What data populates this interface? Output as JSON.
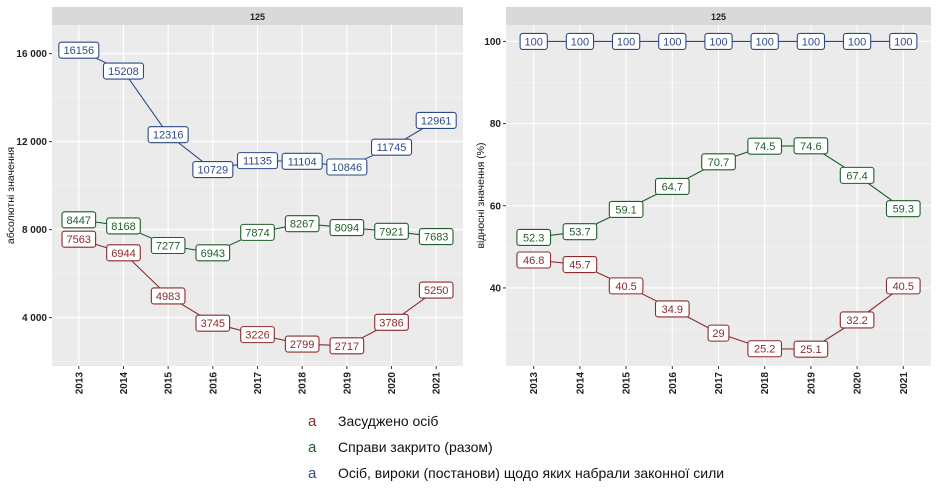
{
  "colors": {
    "convicted": "#8b2a2a",
    "closed": "#1e5e28",
    "total": "#2c4a8a"
  },
  "legend": {
    "key_glyph": "a",
    "items": [
      {
        "series": "convicted",
        "label": "Засуджено осіб"
      },
      {
        "series": "closed",
        "label": "Справи закрито (разом)"
      },
      {
        "series": "total",
        "label": "Осіб, вироки (постанови) щодо яких набрали законної сили"
      }
    ]
  },
  "chart_data": [
    {
      "type": "line",
      "facet_label": "125",
      "xlabel": "",
      "ylabel": "абсолютні значення",
      "categories": [
        "2013",
        "2014",
        "2015",
        "2016",
        "2017",
        "2018",
        "2019",
        "2020",
        "2021"
      ],
      "ylim": [
        1800,
        17300
      ],
      "yticks": [
        4000,
        8000,
        12000,
        16000
      ],
      "ytick_labels": [
        "4 000",
        "8 000",
        "12 000",
        "16 000"
      ],
      "grid": true,
      "legend_position": "bottom",
      "series": [
        {
          "key": "total",
          "name": "Осіб, вироки (постанови) щодо яких набрали законної сили",
          "values": [
            16156,
            15208,
            12316,
            10729,
            11135,
            11104,
            10846,
            11745,
            12961
          ],
          "labels": [
            "16156",
            "15208",
            "12316",
            "10729",
            "11135",
            "11104",
            "10846",
            "11745",
            "12961"
          ]
        },
        {
          "key": "closed",
          "name": "Справи закрито (разом)",
          "values": [
            8447,
            8168,
            7277,
            6943,
            7874,
            8267,
            8094,
            7921,
            7683
          ],
          "labels": [
            "8447",
            "8168",
            "7277",
            "6943",
            "7874",
            "8267",
            "8094",
            "7921",
            "7683"
          ]
        },
        {
          "key": "convicted",
          "name": "Засуджено осіб",
          "values": [
            7563,
            6944,
            4983,
            3745,
            3226,
            2799,
            2717,
            3786,
            5250
          ],
          "labels": [
            "7563",
            "6944",
            "4983",
            "3745",
            "3226",
            "2799",
            "2717",
            "3786",
            "5250"
          ]
        }
      ]
    },
    {
      "type": "line",
      "facet_label": "125",
      "xlabel": "",
      "ylabel": "відносні значення (%)",
      "categories": [
        "2013",
        "2014",
        "2015",
        "2016",
        "2017",
        "2018",
        "2019",
        "2020",
        "2021"
      ],
      "ylim": [
        21,
        104
      ],
      "yticks": [
        40,
        60,
        80,
        100
      ],
      "ytick_labels": [
        "40",
        "60",
        "80",
        "100"
      ],
      "grid": true,
      "legend_position": "bottom",
      "series": [
        {
          "key": "total",
          "name": "Осіб, вироки (постанови) щодо яких набрали законної сили",
          "values": [
            100,
            100,
            100,
            100,
            100,
            100,
            100,
            100,
            100
          ],
          "labels": [
            "100",
            "100",
            "100",
            "100",
            "100",
            "100",
            "100",
            "100",
            "100"
          ]
        },
        {
          "key": "closed",
          "name": "Справи закрито (разом)",
          "values": [
            52.3,
            53.7,
            59.1,
            64.7,
            70.7,
            74.5,
            74.6,
            67.4,
            59.3
          ],
          "labels": [
            "52.3",
            "53.7",
            "59.1",
            "64.7",
            "70.7",
            "74.5",
            "74.6",
            "67.4",
            "59.3"
          ]
        },
        {
          "key": "convicted",
          "name": "Засуджено осіб",
          "values": [
            46.8,
            45.7,
            40.5,
            34.9,
            29,
            25.2,
            25.1,
            32.2,
            40.5
          ],
          "labels": [
            "46.8",
            "45.7",
            "40.5",
            "34.9",
            "29",
            "25.2",
            "25.1",
            "32.2",
            "40.5"
          ]
        }
      ]
    }
  ]
}
